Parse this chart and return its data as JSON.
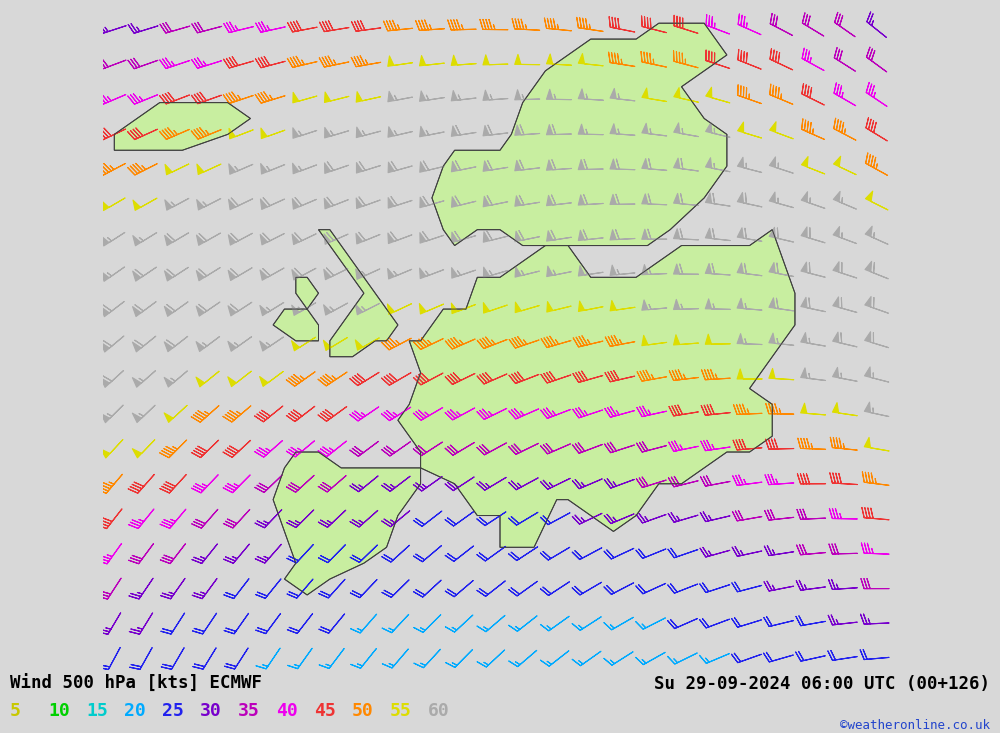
{
  "title_left": "Wind 500 hPa [kts] ECMWF",
  "title_right": "Su 29-09-2024 06:00 UTC (00+126)",
  "attribution": "©weatheronline.co.uk",
  "background_color": "#d8d8d8",
  "map_land_color": "#c8eea0",
  "map_border_color": "#404040",
  "map_sea_color": "#d8d8d8",
  "legend_values": [
    5,
    10,
    15,
    20,
    25,
    30,
    35,
    40,
    45,
    50,
    55,
    60
  ],
  "legend_colors": [
    "#c8c800",
    "#00d000",
    "#00cccc",
    "#00aaff",
    "#2222ee",
    "#7700cc",
    "#bb00bb",
    "#ee00ee",
    "#ee3333",
    "#ff8800",
    "#dddd00",
    "#dddddd"
  ],
  "title_fontsize": 12.5,
  "legend_fontsize": 13,
  "figsize": [
    10.0,
    7.33
  ],
  "lon_min": -25,
  "lon_max": 45,
  "lat_min": 30,
  "lat_max": 72
}
